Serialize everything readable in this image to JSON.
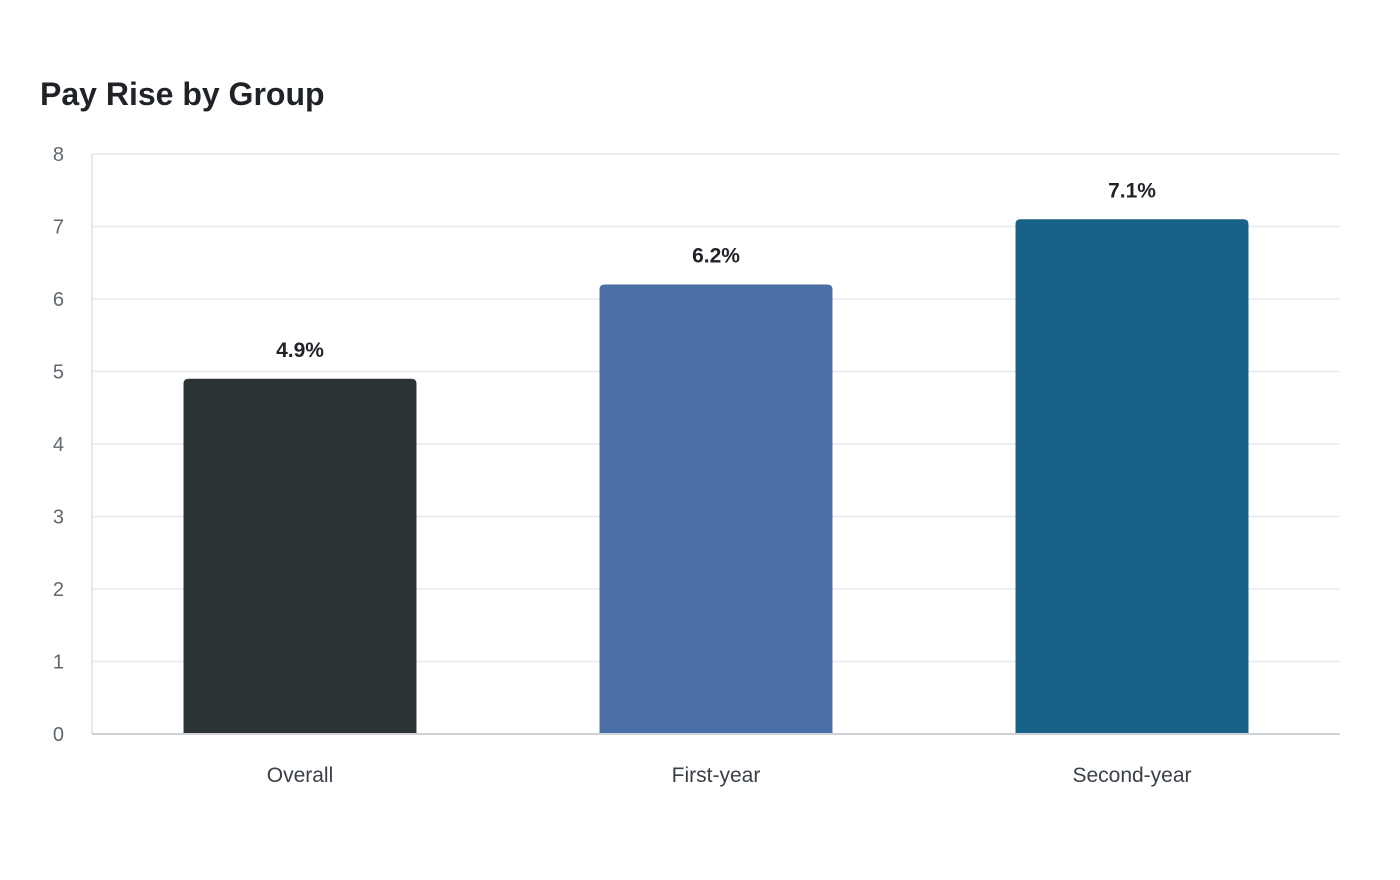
{
  "chart_data": {
    "type": "bar",
    "title": "Pay Rise by Group",
    "xlabel": "",
    "ylabel": "",
    "categories": [
      "Overall",
      "First-year",
      "Second-year"
    ],
    "values": [
      4.9,
      6.2,
      7.1
    ],
    "value_labels": [
      "4.9%",
      "6.2%",
      "7.1%"
    ],
    "bar_colors": [
      "#2d3436",
      "#4a6fa5",
      "#186187"
    ],
    "ylim": [
      0,
      8
    ],
    "yticks": [
      "0",
      "1",
      "2",
      "3",
      "4",
      "5",
      "6",
      "7",
      "8"
    ],
    "grid": true,
    "legend": "none"
  }
}
